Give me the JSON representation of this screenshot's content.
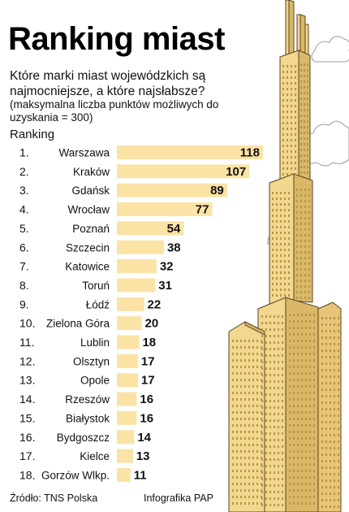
{
  "header": {
    "title": "Ranking miast",
    "subtitle": "Które marki miast wojewódzkich są najmocniejsze, a które najsłabsze?",
    "note": "(maksymalna liczba punktów możliwych do uzyskania = 300)",
    "ranking_label": "Ranking"
  },
  "footer": {
    "source": "Źródło: TNS Polska",
    "credit": "Infografika PAP"
  },
  "colors": {
    "bar": "#fbe3a6",
    "building": "#f2d78e",
    "building_shade": "#d9b868",
    "window": "#b89448",
    "outline": "#5a4520",
    "cloud": "#ffffff"
  },
  "chart_data": {
    "type": "bar",
    "orientation": "horizontal",
    "title": "Ranking miast",
    "ranks": [
      "1.",
      "2.",
      "3.",
      "4.",
      "5.",
      "6.",
      "7.",
      "8.",
      "9.",
      "10.",
      "11.",
      "12.",
      "13.",
      "14.",
      "15.",
      "16.",
      "17.",
      "18."
    ],
    "categories": [
      "Warszawa",
      "Kraków",
      "Gdańsk",
      "Wrocław",
      "Poznań",
      "Szczecin",
      "Katowice",
      "Toruń",
      "Łódź",
      "Zielona Góra",
      "Lublin",
      "Olsztyn",
      "Opole",
      "Rzeszów",
      "Białystok",
      "Bydgoszcz",
      "Kielce",
      "Gorzów Wlkp."
    ],
    "values": [
      118,
      107,
      89,
      77,
      54,
      38,
      32,
      31,
      22,
      20,
      18,
      17,
      17,
      16,
      16,
      14,
      13,
      11
    ],
    "data_labels": true
  }
}
